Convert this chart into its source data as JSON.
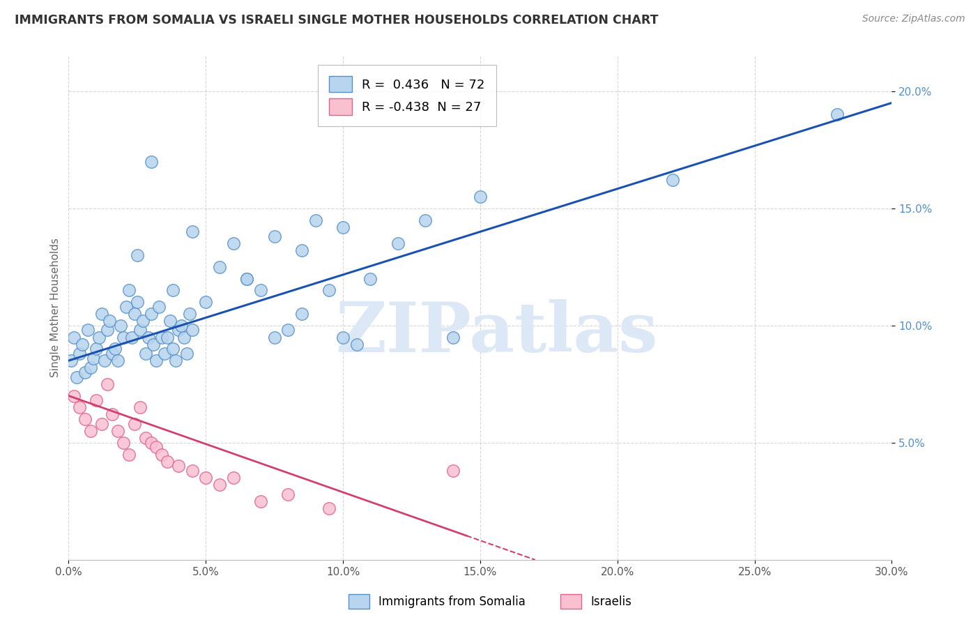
{
  "title": "IMMIGRANTS FROM SOMALIA VS ISRAELI SINGLE MOTHER HOUSEHOLDS CORRELATION CHART",
  "source": "Source: ZipAtlas.com",
  "ylabel": "Single Mother Households",
  "xlim": [
    0.0,
    30.0
  ],
  "ylim": [
    0.0,
    21.5
  ],
  "xticks": [
    0.0,
    5.0,
    10.0,
    15.0,
    20.0,
    25.0,
    30.0
  ],
  "yticks": [
    5.0,
    10.0,
    15.0,
    20.0
  ],
  "series1_label": "Immigrants from Somalia",
  "series1_R": 0.436,
  "series1_N": 72,
  "series1_color": "#b8d4ee",
  "series1_edge": "#5590c8",
  "series2_label": "Israelis",
  "series2_R": -0.438,
  "series2_N": 27,
  "series2_color": "#f9c0d0",
  "series2_edge": "#e06090",
  "trendline1_color": "#1a52b0",
  "trendline2_color": "#d04070",
  "background_color": "#ffffff",
  "watermark": "ZIPatlas",
  "watermark_color": "#dce8f5",
  "grid_color": "#bbbbbb",
  "ytick_color": "#5090cc",
  "xtick_color": "#555555",
  "series1_x": [
    0.1,
    0.2,
    0.3,
    0.4,
    0.5,
    0.6,
    0.7,
    0.8,
    0.9,
    1.0,
    1.1,
    1.2,
    1.3,
    1.4,
    1.5,
    1.6,
    1.7,
    1.8,
    1.9,
    2.0,
    2.1,
    2.2,
    2.3,
    2.4,
    2.5,
    2.6,
    2.7,
    2.8,
    2.9,
    3.0,
    3.1,
    3.2,
    3.3,
    3.4,
    3.5,
    3.6,
    3.7,
    3.8,
    3.9,
    4.0,
    4.1,
    4.2,
    4.3,
    4.4,
    4.5,
    5.0,
    5.5,
    6.0,
    6.5,
    7.0,
    7.5,
    8.0,
    8.5,
    9.0,
    9.5,
    10.0,
    10.5,
    11.0,
    12.0,
    13.0,
    14.0,
    15.0,
    6.5,
    7.5,
    8.5,
    22.0,
    28.0,
    10.0,
    3.0,
    4.5,
    2.5,
    3.8
  ],
  "series1_y": [
    8.5,
    9.5,
    7.8,
    8.8,
    9.2,
    8.0,
    9.8,
    8.2,
    8.6,
    9.0,
    9.5,
    10.5,
    8.5,
    9.8,
    10.2,
    8.8,
    9.0,
    8.5,
    10.0,
    9.5,
    10.8,
    11.5,
    9.5,
    10.5,
    11.0,
    9.8,
    10.2,
    8.8,
    9.5,
    10.5,
    9.2,
    8.5,
    10.8,
    9.5,
    8.8,
    9.5,
    10.2,
    9.0,
    8.5,
    9.8,
    10.0,
    9.5,
    8.8,
    10.5,
    9.8,
    11.0,
    12.5,
    13.5,
    12.0,
    11.5,
    9.5,
    9.8,
    10.5,
    14.5,
    11.5,
    9.5,
    9.2,
    12.0,
    13.5,
    14.5,
    9.5,
    15.5,
    12.0,
    13.8,
    13.2,
    16.2,
    19.0,
    14.2,
    17.0,
    14.0,
    13.0,
    11.5
  ],
  "series2_x": [
    0.2,
    0.4,
    0.6,
    0.8,
    1.0,
    1.2,
    1.4,
    1.6,
    1.8,
    2.0,
    2.2,
    2.4,
    2.6,
    2.8,
    3.0,
    3.2,
    3.4,
    3.6,
    4.0,
    4.5,
    5.0,
    5.5,
    6.0,
    7.0,
    8.0,
    9.5,
    14.0
  ],
  "series2_y": [
    7.0,
    6.5,
    6.0,
    5.5,
    6.8,
    5.8,
    7.5,
    6.2,
    5.5,
    5.0,
    4.5,
    5.8,
    6.5,
    5.2,
    5.0,
    4.8,
    4.5,
    4.2,
    4.0,
    3.8,
    3.5,
    3.2,
    3.5,
    2.5,
    2.8,
    2.2,
    3.8
  ],
  "trendline1_x_start": 0.0,
  "trendline1_x_end": 30.0,
  "trendline1_y_start": 8.5,
  "trendline1_y_end": 19.5,
  "trendline2_x_start": 0.0,
  "trendline2_y_start": 7.0,
  "trendline2_x_solid_end": 14.5,
  "trendline2_x_dashed_end": 17.0,
  "trendline2_y_end": 0.0
}
